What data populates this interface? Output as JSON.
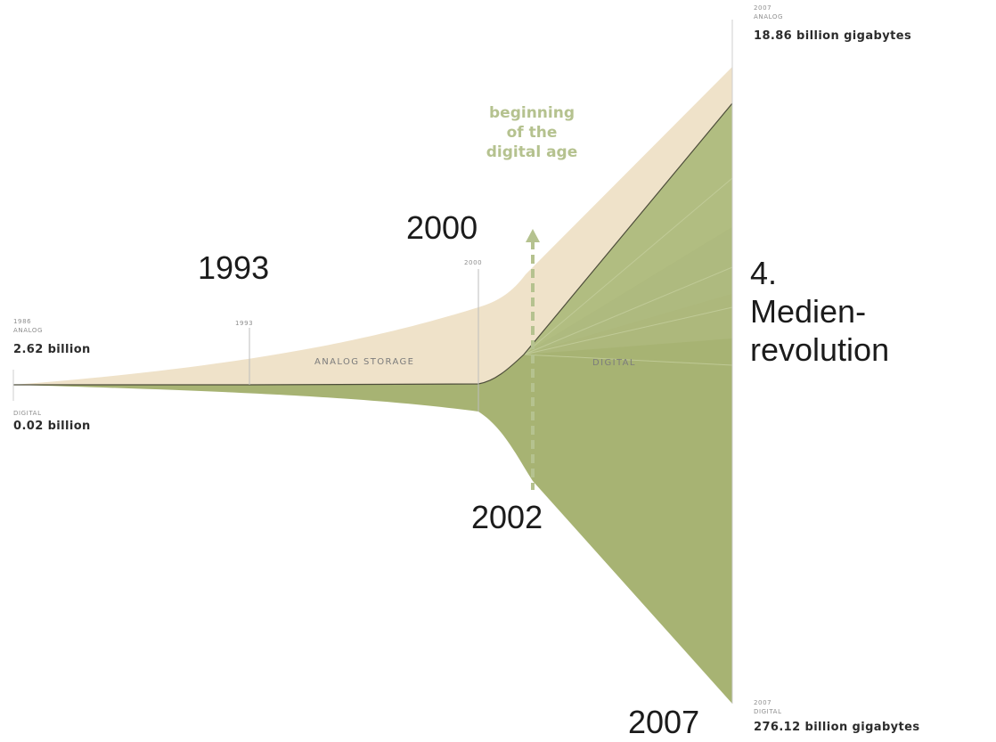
{
  "chart_data": {
    "type": "area",
    "title": "",
    "x": [
      1986,
      1993,
      2000,
      2002,
      2007
    ],
    "series": [
      {
        "name": "ANALOG STORAGE",
        "values": [
          2.62,
          null,
          null,
          null,
          18.86
        ]
      },
      {
        "name": "DIGITAL",
        "values": [
          0.02,
          null,
          null,
          null,
          276.12
        ]
      }
    ],
    "colors": {
      "analog": "#efe2c9",
      "digital": "#a7b373",
      "digital_light": "#b9c48d",
      "annotation": "#b5c28f"
    },
    "labels": {
      "start_year": "1986",
      "start_analog_tag": "ANALOG",
      "start_analog_value": "2.62 billion",
      "start_digital_tag": "DIGITAL",
      "start_digital_value": "0.02 billion",
      "tick_1993": "1993",
      "tick_2000": "2000",
      "band_analog": "ANALOG STORAGE",
      "band_digital": "DIGITAL",
      "end_analog_year": "2007",
      "end_analog_tag": "ANALOG",
      "end_analog_value": "18.86 billion gigabytes",
      "end_digital_year": "2007",
      "end_digital_tag": "DIGITAL",
      "end_digital_value": "276.12 billion gigabytes",
      "annotation_line1": "beginning",
      "annotation_line2": "of the",
      "annotation_line3": "digital age"
    }
  },
  "overlay": {
    "year_1993": "1993",
    "year_2000": "2000",
    "year_2002": "2002",
    "year_2007": "2007",
    "title_line1": "4.",
    "title_line2": "Medien-",
    "title_line3": "revolution"
  }
}
